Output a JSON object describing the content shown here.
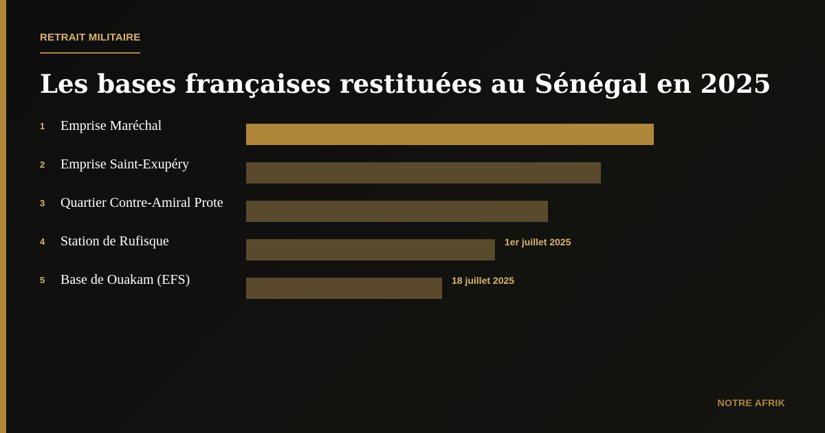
{
  "header": {
    "kicker": "RETRAIT MILITAIRE",
    "title": "Les bases françaises restituées au Sénégal en 2025"
  },
  "footer": {
    "brand": "NOTRE AFRIK"
  },
  "colors": {
    "accent": "#b0873a",
    "bar_muted": "#5a4a2d",
    "note": "#d9b46c",
    "background": "#111110"
  },
  "chart_data": {
    "type": "bar",
    "orientation": "horizontal",
    "title": "Les bases françaises restituées au Sénégal en 2025",
    "categories": [
      "Emprise Maréchal",
      "Emprise Saint-Exupéry",
      "Quartier Contre-Amiral Prote",
      "Station de Rufisque",
      "Base de Ouakam (EFS)"
    ],
    "ranks": [
      "1",
      "2",
      "3",
      "4",
      "5"
    ],
    "values": [
      5,
      4.35,
      3.7,
      3.05,
      2.4
    ],
    "annotations": [
      "",
      "",
      "",
      "1er juillet 2025",
      "18 juillet 2025"
    ],
    "highlighted": [
      true,
      false,
      false,
      false,
      false
    ],
    "xlim": [
      0,
      5
    ],
    "grid": false,
    "legend": "none"
  }
}
